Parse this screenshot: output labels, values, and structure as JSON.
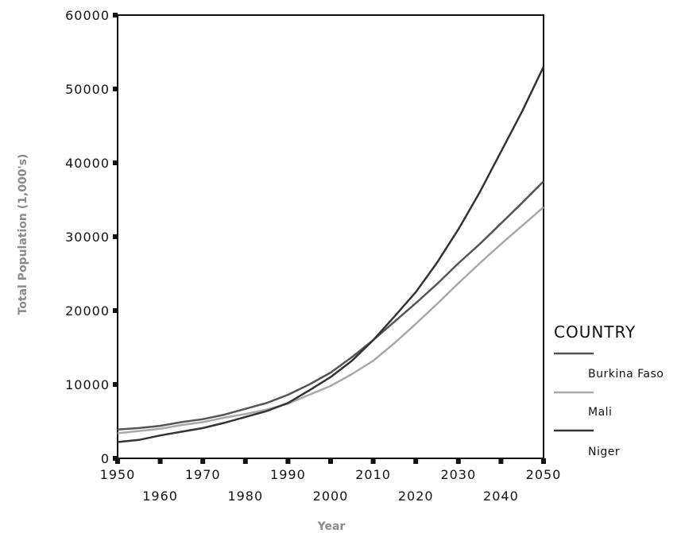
{
  "chart_data": {
    "type": "line",
    "title": "",
    "xlabel": "Year",
    "ylabel": "Total Population (1,000's)",
    "xlim": [
      1950,
      2050
    ],
    "ylim": [
      0,
      60000
    ],
    "x_ticks_upper": [
      "1950",
      "1970",
      "1990",
      "2010",
      "2030",
      "2050"
    ],
    "x_ticks_lower": [
      "1960",
      "1980",
      "2000",
      "2020",
      "2040"
    ],
    "y_ticks": [
      "0",
      "10000",
      "20000",
      "30000",
      "40000",
      "50000",
      "60000"
    ],
    "grid": false,
    "legend": {
      "title": "COUNTRY",
      "placement": "right"
    },
    "x": [
      1950,
      1955,
      1960,
      1965,
      1970,
      1975,
      1980,
      1985,
      1990,
      1995,
      2000,
      2005,
      2010,
      2015,
      2020,
      2025,
      2030,
      2035,
      2040,
      2045,
      2050
    ],
    "series": [
      {
        "name": "Burkina Faso",
        "color": "#555555",
        "values": [
          3900,
          4100,
          4400,
          4900,
          5300,
          5900,
          6700,
          7500,
          8600,
          10000,
          11600,
          13700,
          16000,
          18500,
          21000,
          23600,
          26400,
          29000,
          31800,
          34600,
          37500
        ]
      },
      {
        "name": "Mali",
        "color": "#a8a8a8",
        "values": [
          3400,
          3700,
          4000,
          4500,
          4900,
          5500,
          6000,
          6600,
          7400,
          8600,
          9800,
          11400,
          13200,
          15600,
          18200,
          20900,
          23700,
          26400,
          29000,
          31500,
          34000
        ]
      },
      {
        "name": "Niger",
        "color": "#333333",
        "values": [
          2200,
          2500,
          3100,
          3600,
          4100,
          4800,
          5600,
          6400,
          7500,
          9200,
          11000,
          13200,
          16000,
          19200,
          22500,
          26500,
          31000,
          36000,
          41500,
          47000,
          53000
        ]
      }
    ]
  }
}
